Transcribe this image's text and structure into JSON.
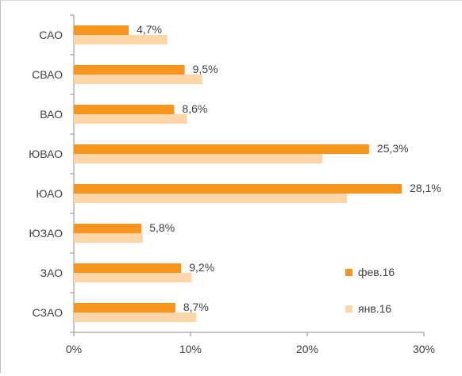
{
  "chart_data": {
    "type": "bar",
    "orientation": "horizontal",
    "categories": [
      "САО",
      "СВАО",
      "ВАО",
      "ЮВАО",
      "ЮАО",
      "ЮЗАО",
      "ЗАО",
      "СЗАО"
    ],
    "series": [
      {
        "name": "фев.16",
        "color": "#f7941d",
        "values": [
          4.7,
          9.5,
          8.6,
          25.3,
          28.1,
          5.8,
          9.2,
          8.7
        ],
        "labels": [
          "4,7%",
          "9,5%",
          "8,6%",
          "25,3%",
          "28,1%",
          "5,8%",
          "9,2%",
          "8,7%"
        ]
      },
      {
        "name": "янв.16",
        "color": "#fdd5a6",
        "values": [
          8.0,
          11.0,
          9.7,
          21.3,
          23.4,
          5.9,
          10.1,
          10.5
        ]
      }
    ],
    "xlim": [
      0,
      30
    ],
    "xticks": [
      "0%",
      "10%",
      "20%",
      "30%"
    ],
    "grid": false,
    "legend_position": "bottom-right"
  }
}
